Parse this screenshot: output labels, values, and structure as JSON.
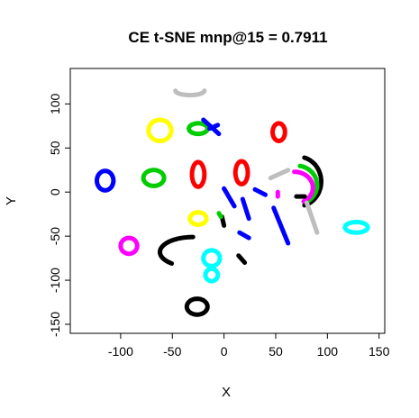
{
  "chart_data": {
    "type": "scatter",
    "title": "CE t-SNE mnp@15 = 0.7911",
    "xlabel": "X",
    "ylabel": "Y",
    "xlim": [
      -140,
      152
    ],
    "ylim": [
      -150,
      130
    ],
    "xticks": [
      -100,
      -50,
      0,
      50,
      100,
      150
    ],
    "xtick_labels": [
      "-100",
      "-50",
      "0",
      "50",
      "100",
      "150"
    ],
    "yticks": [
      -150,
      -100,
      -50,
      0,
      50,
      100
    ],
    "ytick_labels": [
      "-150",
      "-100",
      "-50",
      "0",
      "50",
      "100"
    ],
    "grid": false,
    "legend": "none",
    "clusters": [
      {
        "color": "#BEBEBE",
        "shape": "ring",
        "cx": -33,
        "cy": 115,
        "rx": 14,
        "ry": 5,
        "sa": 180,
        "ea": 360
      },
      {
        "color": "#FFFF00",
        "shape": "ring",
        "cx": -62,
        "cy": 70,
        "rx": 11,
        "ry": 12,
        "sa": 0,
        "ea": 360
      },
      {
        "color": "#00CD00",
        "shape": "ring",
        "cx": -68,
        "cy": 16,
        "rx": 10,
        "ry": 9,
        "sa": 0,
        "ea": 360
      },
      {
        "color": "#0000FF",
        "shape": "ring",
        "cx": -115,
        "cy": 13,
        "rx": 8,
        "ry": 11,
        "sa": 0,
        "ea": 360
      },
      {
        "color": "#FF00FF",
        "shape": "ring",
        "cx": -92,
        "cy": -61,
        "rx": 8,
        "ry": 9,
        "sa": 0,
        "ea": 360
      },
      {
        "color": "#000000",
        "shape": "ring",
        "cx": -26,
        "cy": -130,
        "rx": 10,
        "ry": 9,
        "sa": 0,
        "ea": 360
      },
      {
        "color": "#00FFFF",
        "shape": "ring",
        "cx": -12,
        "cy": -75,
        "rx": 8,
        "ry": 9,
        "sa": 0,
        "ea": 360
      },
      {
        "color": "#00FFFF",
        "shape": "ring",
        "cx": -12,
        "cy": -94,
        "rx": 6,
        "ry": 7,
        "sa": 0,
        "ea": 360
      },
      {
        "color": "#00FFFF",
        "shape": "ring",
        "cx": 128,
        "cy": -40,
        "rx": 11,
        "ry": 6,
        "sa": 0,
        "ea": 360
      },
      {
        "color": "#FFFF00",
        "shape": "ring",
        "cx": -25,
        "cy": -30,
        "rx": 8,
        "ry": 7,
        "sa": 0,
        "ea": 360
      },
      {
        "color": "#FF0000",
        "shape": "ring",
        "cx": -25,
        "cy": 20,
        "rx": 6,
        "ry": 14,
        "sa": 0,
        "ea": 360
      },
      {
        "color": "#FF0000",
        "shape": "ring",
        "cx": 17,
        "cy": 22,
        "rx": 6,
        "ry": 13,
        "sa": 0,
        "ea": 360
      },
      {
        "color": "#FF0000",
        "shape": "ring",
        "cx": 53,
        "cy": 68,
        "rx": 6,
        "ry": 10,
        "sa": 0,
        "ea": 360
      },
      {
        "color": "#00CD00",
        "shape": "ring",
        "cx": -25,
        "cy": 72,
        "rx": 9,
        "ry": 6,
        "sa": 0,
        "ea": 360
      },
      {
        "color": "#000000",
        "shape": "ring",
        "cx": 72,
        "cy": 12,
        "rx": 22,
        "ry": 28,
        "sa": -75,
        "ea": 75
      },
      {
        "color": "#00CD00",
        "shape": "ring",
        "cx": 70,
        "cy": 8,
        "rx": 20,
        "ry": 22,
        "sa": -60,
        "ea": 80
      },
      {
        "color": "#FF00FF",
        "shape": "ring",
        "cx": 68,
        "cy": 5,
        "rx": 18,
        "ry": 18,
        "sa": -60,
        "ea": 90
      },
      {
        "color": "#000000",
        "shape": "ring",
        "cx": -30,
        "cy": -68,
        "rx": 32,
        "ry": 17,
        "sa": 90,
        "ea": 230
      },
      {
        "color": "#0000FF",
        "shape": "line",
        "x1": -20,
        "y1": 82,
        "x2": -5,
        "y2": 66
      },
      {
        "color": "#0000FF",
        "shape": "line",
        "x1": -14,
        "y1": 72,
        "x2": -6,
        "y2": 76
      },
      {
        "color": "#0000FF",
        "shape": "line",
        "x1": 0,
        "y1": 4,
        "x2": 10,
        "y2": -16
      },
      {
        "color": "#0000FF",
        "shape": "line",
        "x1": 30,
        "y1": 3,
        "x2": 40,
        "y2": -3
      },
      {
        "color": "#0000FF",
        "shape": "line",
        "x1": 18,
        "y1": -8,
        "x2": 24,
        "y2": -30
      },
      {
        "color": "#0000FF",
        "shape": "line",
        "x1": 15,
        "y1": -46,
        "x2": 24,
        "y2": -52
      },
      {
        "color": "#0000FF",
        "shape": "line",
        "x1": 48,
        "y1": -18,
        "x2": 62,
        "y2": -58
      },
      {
        "color": "#BEBEBE",
        "shape": "line",
        "x1": 80,
        "y1": -12,
        "x2": 90,
        "y2": -46
      },
      {
        "color": "#BEBEBE",
        "shape": "line",
        "x1": 45,
        "y1": 16,
        "x2": 62,
        "y2": 25
      },
      {
        "color": "#000000",
        "shape": "line",
        "x1": 14,
        "y1": -72,
        "x2": 20,
        "y2": -80
      },
      {
        "color": "#000000",
        "shape": "line",
        "x1": -2,
        "y1": -28,
        "x2": 0,
        "y2": -38
      },
      {
        "color": "#000000",
        "shape": "line",
        "x1": 70,
        "y1": -5,
        "x2": 78,
        "y2": -5
      },
      {
        "color": "#FF00FF",
        "shape": "line",
        "x1": 52,
        "y1": 0,
        "x2": 52,
        "y2": -5
      },
      {
        "color": "#00CD00",
        "shape": "line",
        "x1": -5,
        "y1": -24,
        "x2": -3,
        "y2": -28
      }
    ]
  }
}
